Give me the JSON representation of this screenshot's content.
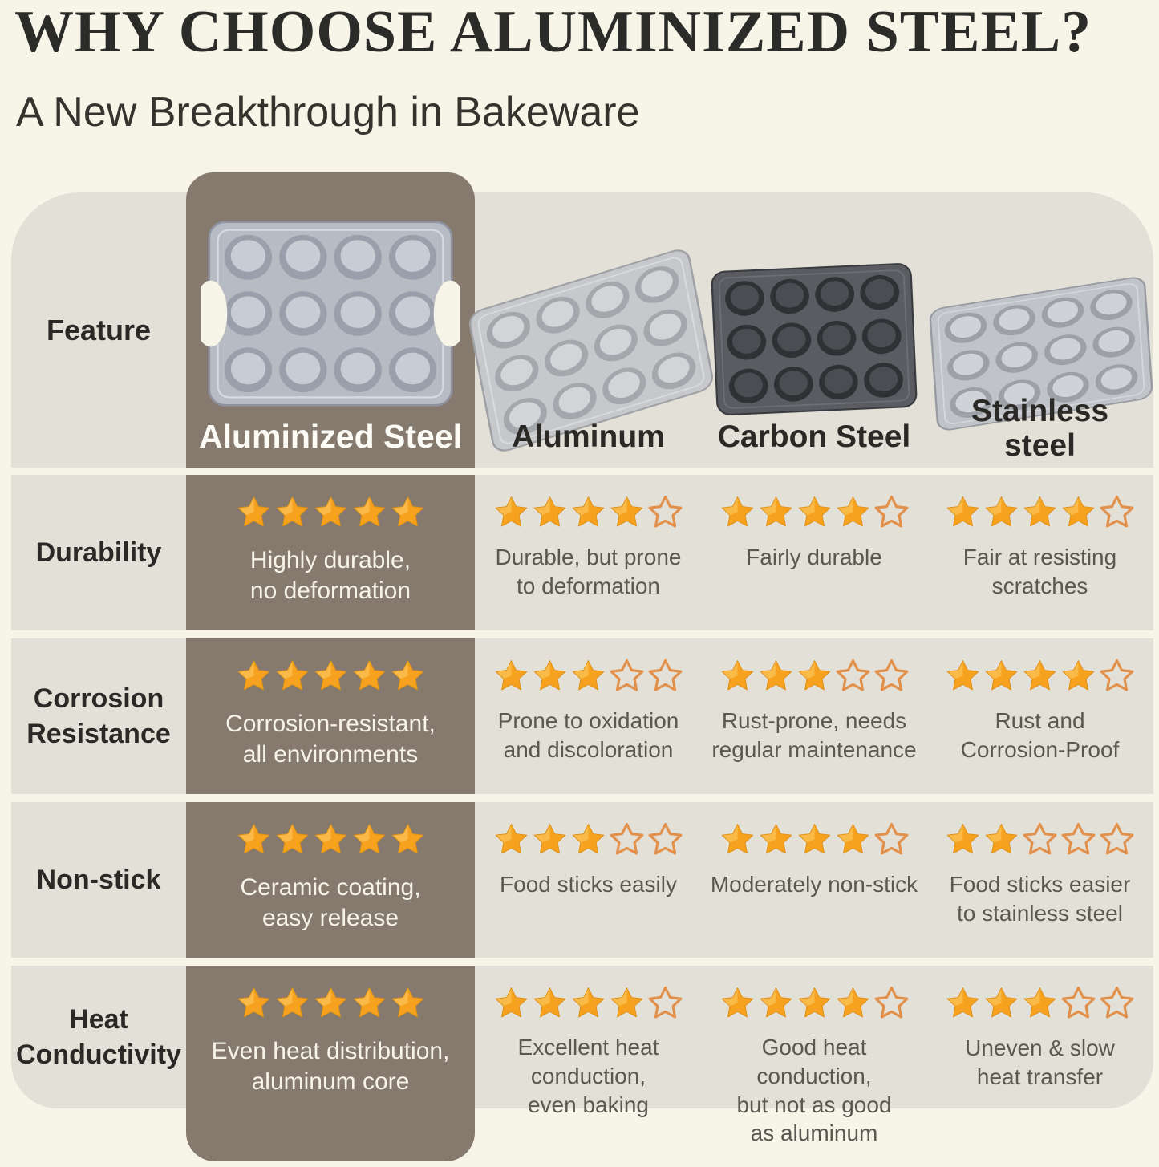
{
  "page": {
    "title": "WHY CHOOSE ALUMINIZED STEEL?",
    "subtitle": "A New Breakthrough in Bakeware"
  },
  "table": {
    "feature_header": "Feature",
    "columns": [
      {
        "label": "Aluminized Steel"
      },
      {
        "label": "Aluminum"
      },
      {
        "label": "Carbon Steel"
      },
      {
        "label": "Stainless\nsteel"
      }
    ],
    "rows": [
      {
        "feature": "Durability",
        "cells": [
          {
            "rating": 5,
            "text": "Highly durable,\nno deformation"
          },
          {
            "rating": 4,
            "text": "Durable, but prone\nto deformation"
          },
          {
            "rating": 4,
            "text": "Fairly durable"
          },
          {
            "rating": 4,
            "text": "Fair at resisting\nscratches"
          }
        ]
      },
      {
        "feature": "Corrosion\nResistance",
        "cells": [
          {
            "rating": 5,
            "text": "Corrosion-resistant,\nall environments"
          },
          {
            "rating": 3,
            "text": "Prone to oxidation\nand discoloration"
          },
          {
            "rating": 3,
            "text": "Rust-prone, needs\nregular maintenance"
          },
          {
            "rating": 4,
            "text": "Rust and\nCorrosion-Proof"
          }
        ]
      },
      {
        "feature": "Non-stick",
        "cells": [
          {
            "rating": 5,
            "text": "Ceramic coating,\neasy release"
          },
          {
            "rating": 3,
            "text": "Food sticks easily"
          },
          {
            "rating": 4,
            "text": "Moderately non-stick"
          },
          {
            "rating": 2,
            "text": "Food sticks easier\nto stainless steel"
          }
        ]
      },
      {
        "feature": "Heat\nConductivity",
        "cells": [
          {
            "rating": 5,
            "text": "Even heat distribution,\naluminum core"
          },
          {
            "rating": 4,
            "text": "Excellent heat\nconduction,\neven baking"
          },
          {
            "rating": 4,
            "text": "Good heat conduction,\nbut not as good\nas aluminum"
          },
          {
            "rating": 3,
            "text": "Uneven & slow\nheat transfer"
          }
        ]
      }
    ]
  },
  "colors": {
    "background": "#f7f4e8",
    "band": "#e3e0d7",
    "highlight_column": "#857a6d",
    "star_filled": "#F6A21F",
    "star_highlight": "#FFD877",
    "star_edge": "#DE8F14",
    "star_outline": "#E2914C",
    "title_text": "#2b2b29",
    "caption_text": "#5b5751",
    "highlight_caption_text": "#f7f3e9"
  },
  "chart_data": {
    "type": "table",
    "title": "WHY CHOOSE ALUMINIZED STEEL?",
    "subtitle": "A New Breakthrough in Bakeware",
    "columns": [
      "Aluminized Steel",
      "Aluminum",
      "Carbon Steel",
      "Stainless steel"
    ],
    "row_features": [
      "Durability",
      "Corrosion Resistance",
      "Non-stick",
      "Heat Conductivity"
    ],
    "ratings_out_of_5": [
      [
        5,
        4,
        4,
        4
      ],
      [
        5,
        3,
        3,
        4
      ],
      [
        5,
        3,
        4,
        2
      ],
      [
        5,
        4,
        4,
        3
      ]
    ],
    "notes": [
      [
        "Highly durable, no deformation",
        "Durable, but prone to deformation",
        "Fairly durable",
        "Fair at resisting scratches"
      ],
      [
        "Corrosion-resistant, all environments",
        "Prone to oxidation and discoloration",
        "Rust-prone, needs regular maintenance",
        "Rust and Corrosion-Proof"
      ],
      [
        "Ceramic coating, easy release",
        "Food sticks easily",
        "Moderately non-stick",
        "Food sticks easier to stainless steel"
      ],
      [
        "Even heat distribution, aluminum core",
        "Excellent heat conduction, even baking",
        "Good heat conduction, but not as good as aluminum",
        "Uneven & slow heat transfer"
      ]
    ],
    "legend_position": "none",
    "grid": false
  }
}
